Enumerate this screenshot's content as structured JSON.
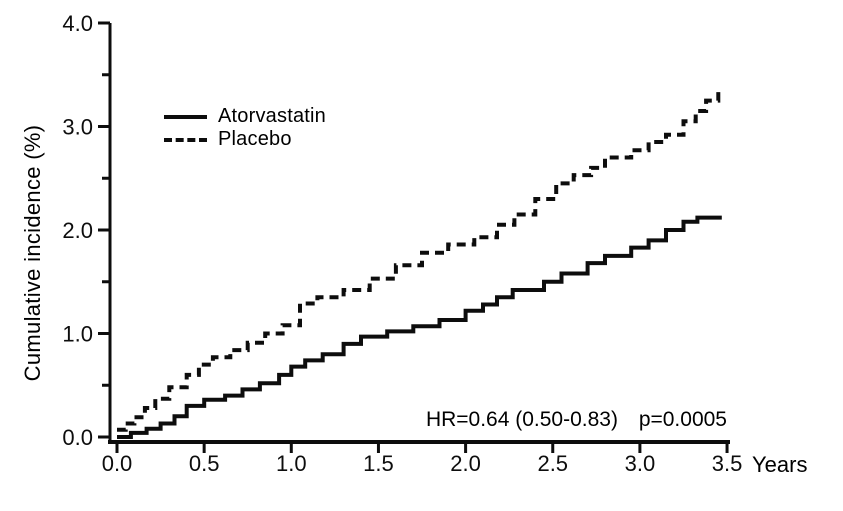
{
  "chart_data": {
    "type": "line",
    "variant": "step-cumulative-incidence",
    "title": "",
    "xlabel": "Years",
    "ylabel": "Cumulative incidence (%)",
    "xlim": [
      0,
      3.5
    ],
    "ylim": [
      0,
      4.0
    ],
    "x_tick_values": [
      0,
      0.5,
      1.0,
      1.5,
      2.0,
      2.5,
      3.0,
      3.5
    ],
    "x_tick_labels": [
      "0.0",
      "0.5",
      "1.0",
      "1.5",
      "2.0",
      "2.5",
      "3.0",
      "3.5"
    ],
    "y_tick_values": [
      0,
      1.0,
      2.0,
      3.0,
      4.0
    ],
    "y_tick_labels": [
      "0.0",
      "1.0",
      "2.0",
      "3.0",
      "4.0"
    ],
    "y_minor_tick_values": [
      0.5,
      1.5,
      2.5,
      3.5
    ],
    "grid": false,
    "legend_position": "inside-upper-left",
    "line_color": "#0d0d0d",
    "annotations": {
      "hr": "HR=0.64 (0.50-0.83)",
      "p_value": "p=0.0005"
    },
    "series": [
      {
        "name": "Atorvastatin",
        "line_style": "solid",
        "color": "#0d0d0d",
        "points": [
          [
            0,
            0
          ],
          [
            0.08,
            0.04
          ],
          [
            0.17,
            0.08
          ],
          [
            0.25,
            0.13
          ],
          [
            0.33,
            0.2
          ],
          [
            0.4,
            0.3
          ],
          [
            0.5,
            0.36
          ],
          [
            0.62,
            0.4
          ],
          [
            0.72,
            0.46
          ],
          [
            0.82,
            0.52
          ],
          [
            0.93,
            0.6
          ],
          [
            1.0,
            0.68
          ],
          [
            1.08,
            0.74
          ],
          [
            1.18,
            0.8
          ],
          [
            1.3,
            0.9
          ],
          [
            1.4,
            0.97
          ],
          [
            1.55,
            1.02
          ],
          [
            1.7,
            1.07
          ],
          [
            1.85,
            1.13
          ],
          [
            2.0,
            1.22
          ],
          [
            2.1,
            1.28
          ],
          [
            2.18,
            1.35
          ],
          [
            2.27,
            1.42
          ],
          [
            2.45,
            1.5
          ],
          [
            2.55,
            1.58
          ],
          [
            2.7,
            1.68
          ],
          [
            2.8,
            1.75
          ],
          [
            2.95,
            1.83
          ],
          [
            3.05,
            1.9
          ],
          [
            3.15,
            2.0
          ],
          [
            3.25,
            2.08
          ],
          [
            3.33,
            2.12
          ],
          [
            3.47,
            2.12
          ]
        ]
      },
      {
        "name": "Placebo",
        "line_style": "dashed",
        "color": "#0d0d0d",
        "points": [
          [
            0,
            0.07
          ],
          [
            0.05,
            0.13
          ],
          [
            0.1,
            0.19
          ],
          [
            0.16,
            0.28
          ],
          [
            0.22,
            0.37
          ],
          [
            0.3,
            0.48
          ],
          [
            0.4,
            0.6
          ],
          [
            0.47,
            0.7
          ],
          [
            0.55,
            0.77
          ],
          [
            0.65,
            0.84
          ],
          [
            0.75,
            0.91
          ],
          [
            0.85,
            1.0
          ],
          [
            0.95,
            1.08
          ],
          [
            1.05,
            1.29
          ],
          [
            1.15,
            1.35
          ],
          [
            1.3,
            1.42
          ],
          [
            1.45,
            1.53
          ],
          [
            1.6,
            1.66
          ],
          [
            1.75,
            1.78
          ],
          [
            1.9,
            1.86
          ],
          [
            2.05,
            1.93
          ],
          [
            2.18,
            2.05
          ],
          [
            2.28,
            2.15
          ],
          [
            2.4,
            2.3
          ],
          [
            2.52,
            2.45
          ],
          [
            2.62,
            2.53
          ],
          [
            2.72,
            2.6
          ],
          [
            2.8,
            2.7
          ],
          [
            2.95,
            2.77
          ],
          [
            3.05,
            2.85
          ],
          [
            3.15,
            2.92
          ],
          [
            3.25,
            3.05
          ],
          [
            3.32,
            3.15
          ],
          [
            3.38,
            3.25
          ],
          [
            3.45,
            3.35
          ]
        ]
      }
    ]
  }
}
